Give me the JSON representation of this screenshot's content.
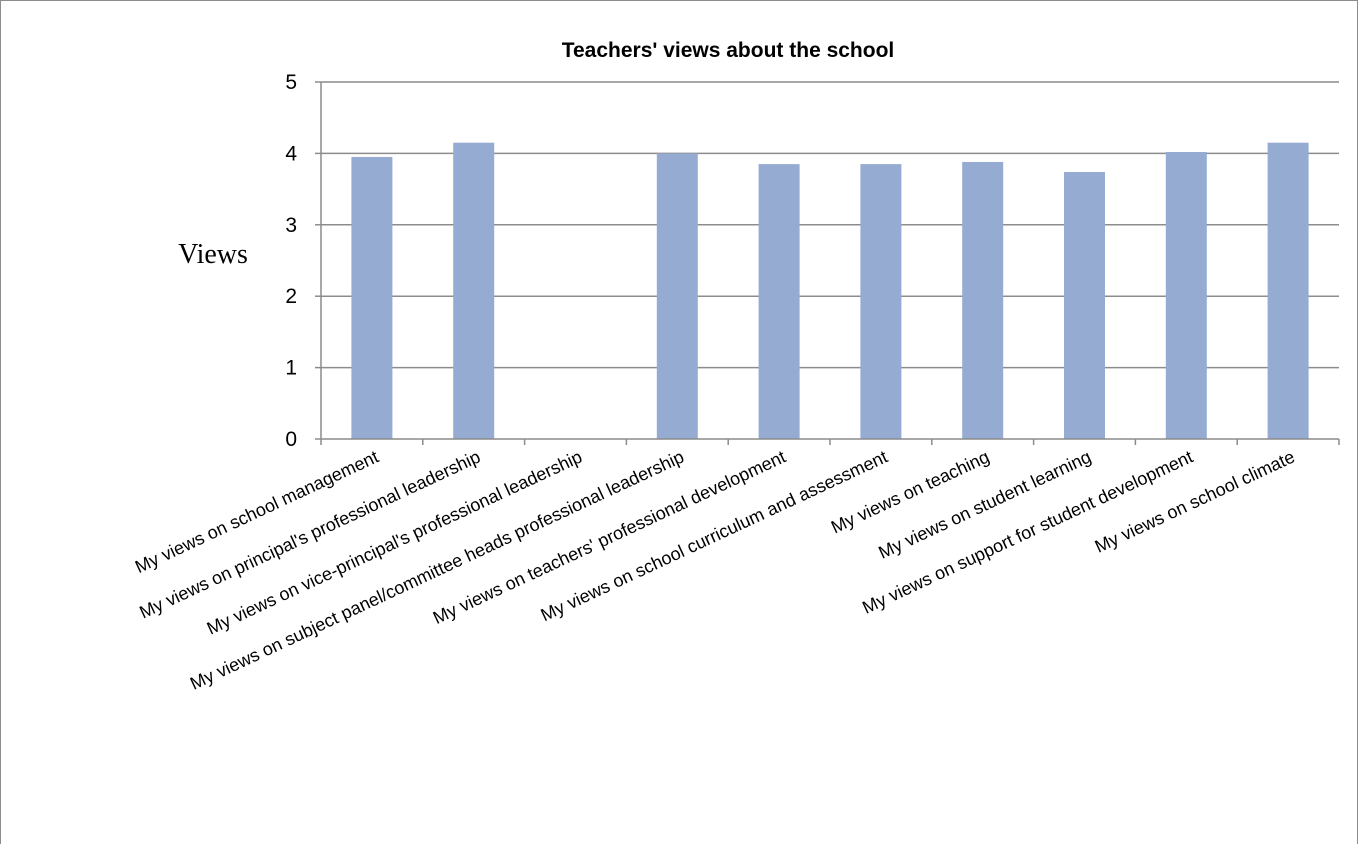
{
  "chart_data": {
    "type": "bar",
    "title": "Teachers' views about the school",
    "xlabel": "",
    "ylabel": "Views",
    "ylim": [
      0,
      5
    ],
    "yticks": [
      0,
      1,
      2,
      3,
      4,
      5
    ],
    "grid": true,
    "legend": "none",
    "bar_color": "#95abd2",
    "categories": [
      "My views on school management",
      "My views on principal's professional leadership",
      "My views on vice-principal's professional leadership",
      "My views on subject panel/committee heads professional leadership",
      "My views on teachers' professional development",
      "My views on school curriculum and assessment",
      "My views on teaching",
      "My views on student learning",
      "My views on support for student development",
      "My views on school climate"
    ],
    "values": [
      3.95,
      4.15,
      null,
      4.0,
      3.85,
      3.85,
      3.88,
      3.74,
      4.02,
      4.15
    ]
  }
}
